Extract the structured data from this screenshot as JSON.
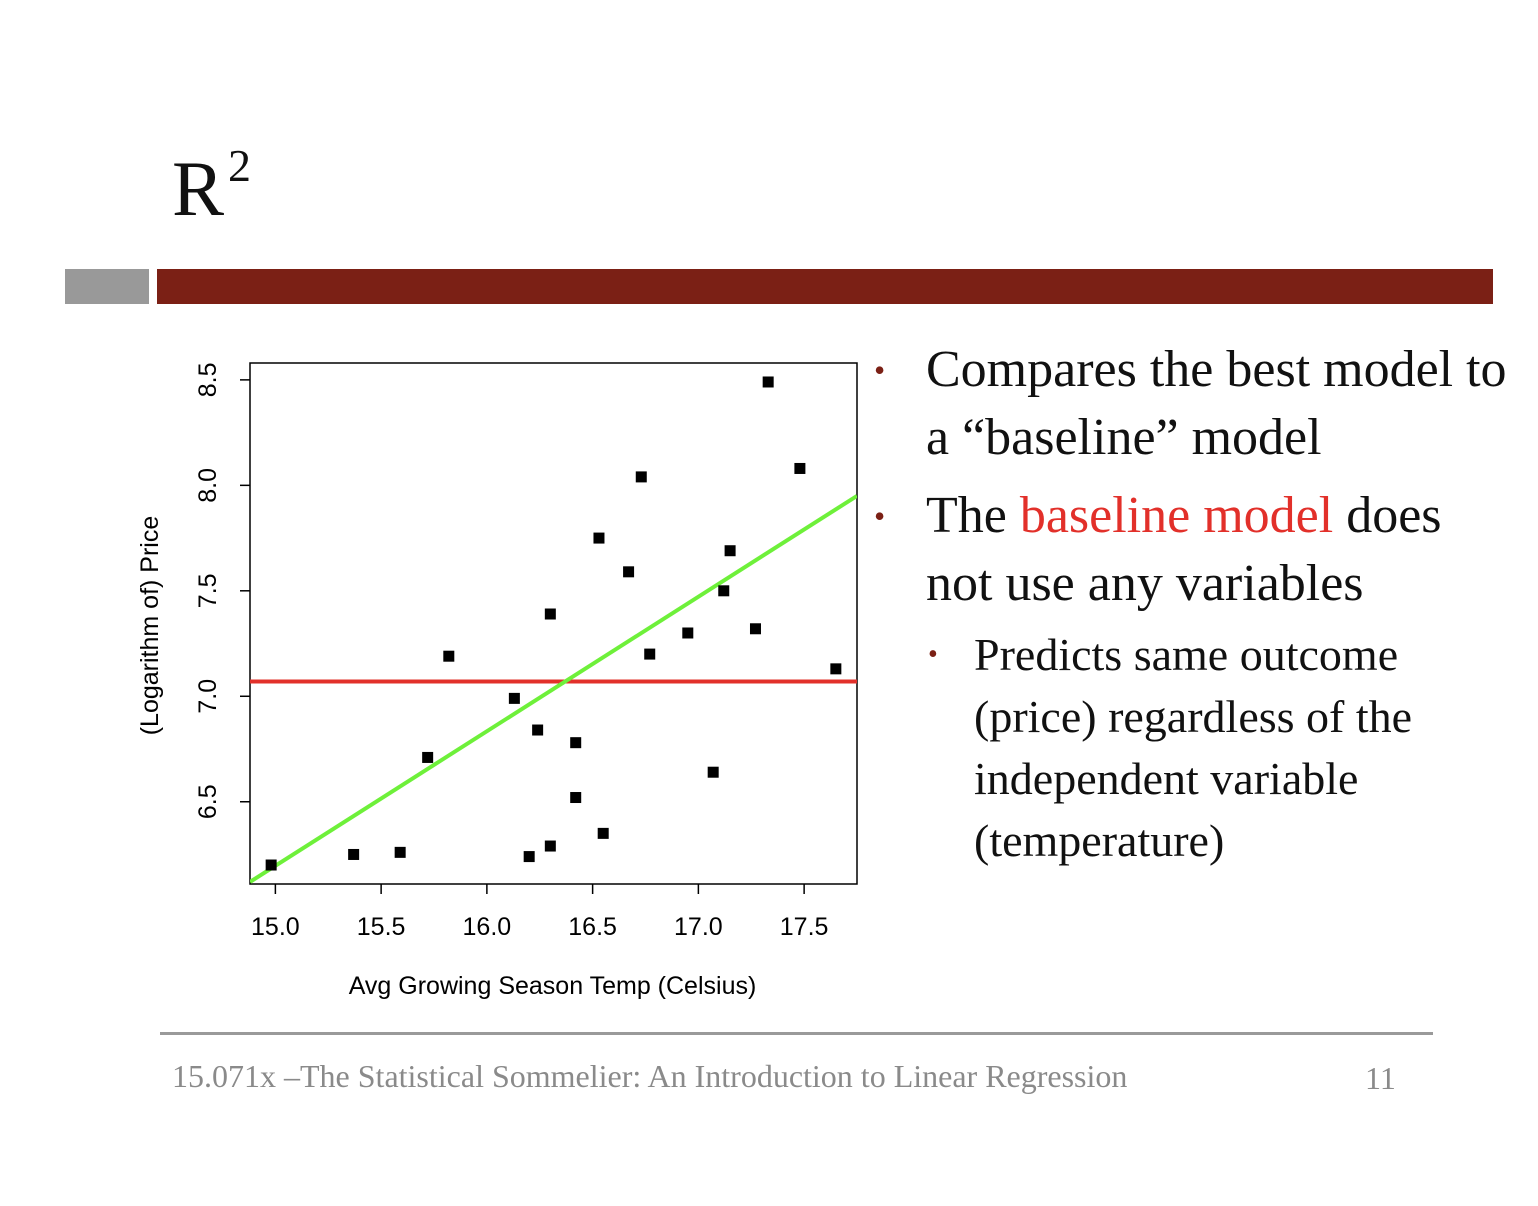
{
  "slide": {
    "title": "R",
    "title_sup": "2",
    "bullets": [
      {
        "text": "Compares the best model to a “baseline” model"
      },
      {
        "text_before": "The ",
        "highlight": "baseline model",
        "text_after": " does not use any variables",
        "sub_bullets": [
          "Predicts same outcome (price) regardless of the independent variable (temperature)"
        ]
      }
    ],
    "footer": "15.071x –The Statistical Sommelier: An Introduction to Linear Regression",
    "page_number": "11",
    "colors": {
      "accent_bar": "#7b2015",
      "gray_bar": "#999999",
      "highlight": "#e2302a"
    }
  },
  "chart_data": {
    "type": "scatter",
    "xlabel": "Avg Growing Season Temp (Celsius)",
    "ylabel": "(Logarithm of) Price",
    "xlim": [
      14.88,
      17.75
    ],
    "ylim": [
      6.11,
      8.58
    ],
    "xticks": [
      "15.0",
      "15.5",
      "16.0",
      "16.5",
      "17.0",
      "17.5"
    ],
    "yticks": [
      "6.5",
      "7.0",
      "7.5",
      "8.0",
      "8.5"
    ],
    "grid": false,
    "points": [
      [
        14.98,
        6.2
      ],
      [
        15.37,
        6.25
      ],
      [
        15.59,
        6.26
      ],
      [
        15.72,
        6.71
      ],
      [
        15.82,
        7.19
      ],
      [
        16.13,
        6.99
      ],
      [
        16.2,
        6.24
      ],
      [
        16.24,
        6.84
      ],
      [
        16.3,
        6.29
      ],
      [
        16.3,
        7.39
      ],
      [
        16.42,
        6.78
      ],
      [
        16.42,
        6.52
      ],
      [
        16.53,
        7.75
      ],
      [
        16.55,
        6.35
      ],
      [
        16.67,
        7.59
      ],
      [
        16.73,
        8.04
      ],
      [
        16.77,
        7.2
      ],
      [
        16.95,
        7.3
      ],
      [
        17.07,
        6.64
      ],
      [
        17.12,
        7.5
      ],
      [
        17.15,
        7.69
      ],
      [
        17.27,
        7.32
      ],
      [
        17.33,
        8.49
      ],
      [
        17.48,
        8.08
      ],
      [
        17.65,
        7.13
      ]
    ],
    "series": [
      {
        "type": "line",
        "color": "#e2302a",
        "points": [
          [
            14.88,
            7.07
          ],
          [
            17.75,
            7.07
          ]
        ]
      },
      {
        "type": "line",
        "color": "#6ef03a",
        "points": [
          [
            14.88,
            6.12
          ],
          [
            17.75,
            7.95
          ]
        ]
      }
    ]
  }
}
